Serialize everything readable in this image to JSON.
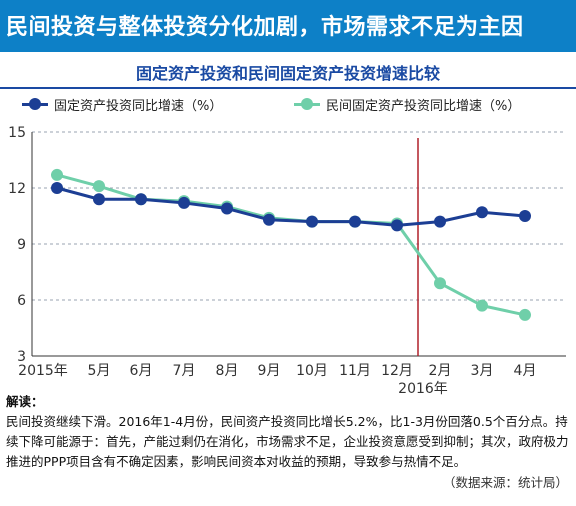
{
  "banner": {
    "title": "民间投资与整体投资分化加剧，市场需求不足为主因"
  },
  "chart_data": {
    "type": "line",
    "title": "固定资产投资和民间固定资产投资增速比较",
    "categories": [
      "2015年",
      "5月",
      "6月",
      "7月",
      "8月",
      "9月",
      "10月",
      "11月",
      "12月",
      "2月",
      "3月",
      "4月"
    ],
    "year_marker": "2016年",
    "ylim": [
      3,
      15
    ],
    "yticks": [
      "3",
      "6",
      "9",
      "12",
      "15"
    ],
    "grid": true,
    "legend_position": "top",
    "series": [
      {
        "name": "固定资产投资同比增速（%）",
        "color": "#1c3e94",
        "values": [
          12.0,
          11.4,
          11.4,
          11.2,
          10.9,
          10.3,
          10.2,
          10.2,
          10.0,
          10.2,
          10.7,
          10.5
        ]
      },
      {
        "name": "民间固定资产投资同比增速（%）",
        "color": "#6fcfa9",
        "values": [
          12.7,
          12.1,
          11.4,
          11.3,
          11.0,
          10.4,
          10.2,
          10.2,
          10.1,
          6.9,
          5.7,
          5.2
        ]
      }
    ],
    "marker_color": "#b0202a"
  },
  "note": {
    "title": "解读：",
    "body": "民间投资继续下滑。2016年1-4月份，民间资产投资同比增长5.2%，比1-3月份回落0.5个百分点。持续下降可能源于：首先，产能过剩仍在消化，市场需求不足，企业投资意愿受到抑制；其次，政府极力推进的PPP项目含有不确定因素，影响民间资本对收益的预期，导致参与热情不足。",
    "source": "（数据来源：统计局）"
  }
}
